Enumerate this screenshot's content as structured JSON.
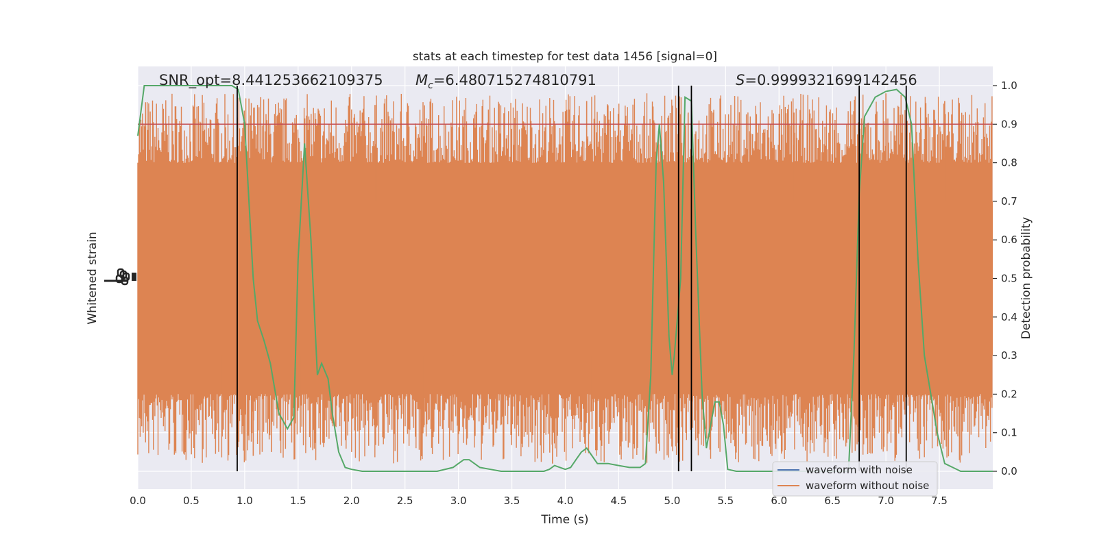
{
  "chart_data": {
    "type": "line",
    "title": "stats at each timestep for test data 1456 [signal=0]",
    "xlabel": "Time (s)",
    "ylabel_left": "Whitened strain",
    "ylabel_right": "Detection probability",
    "xlim": [
      0,
      8.0
    ],
    "ylim_right": [
      -0.05,
      1.05
    ],
    "x_ticks": [
      "0.0",
      "0.5",
      "1.0",
      "1.5",
      "2.0",
      "2.5",
      "3.0",
      "3.5",
      "4.0",
      "4.5",
      "5.0",
      "5.5",
      "6.0",
      "6.5",
      "7.0",
      "7.5"
    ],
    "x_tick_values": [
      0,
      0.5,
      1,
      1.5,
      2,
      2.5,
      3,
      3.5,
      4,
      4.5,
      5,
      5.5,
      6,
      6.5,
      7,
      7.5
    ],
    "y_right_ticks": [
      "0.0",
      "0.1",
      "0.2",
      "0.3",
      "0.4",
      "0.5",
      "0.6",
      "0.7",
      "0.8",
      "0.9",
      "1.0"
    ],
    "y_right_tick_values": [
      0,
      0.1,
      0.2,
      0.3,
      0.4,
      0.5,
      0.6,
      0.7,
      0.8,
      0.9,
      1.0
    ],
    "grid": true,
    "legend_position": "lower-right",
    "annotations": {
      "snr": "SNR_opt=8.441253662109375",
      "mc_prefix": "M",
      "mc_sub": "c",
      "mc_value": "=6.480715274810791",
      "s_prefix": "S",
      "s_value": "=0.9999321699142456"
    },
    "series": [
      {
        "name": "waveform with noise",
        "color": "#4c72b0"
      },
      {
        "name": "waveform without noise",
        "color": "#dd8452"
      }
    ],
    "strain_band": {
      "center": 0.5,
      "core_half_width": 0.2
    },
    "strain_spike_times": [
      0.61,
      0.79,
      1.08,
      1.15,
      1.25,
      1.52,
      1.6,
      2.1,
      2.23,
      2.68,
      2.95,
      3.35,
      3.88,
      4.2,
      4.25,
      5.15,
      5.22,
      6.14,
      6.73,
      7.0,
      7.38,
      7.55,
      7.62
    ],
    "strain_spike_values": [
      0.88,
      0.09,
      0.04,
      0.97,
      0.05,
      0.1,
      0.92,
      0.93,
      0.95,
      0.12,
      0.1,
      0.1,
      0.02,
      0.96,
      0.11,
      0.93,
      0.08,
      0.93,
      0.07,
      0.98,
      0.08,
      0.96,
      0.91
    ],
    "threshold": {
      "value": 0.9,
      "color": "#c44e52"
    },
    "probability": {
      "color": "#55a868",
      "x": [
        0.0,
        0.06,
        0.12,
        0.2,
        0.3,
        0.4,
        0.5,
        0.6,
        0.7,
        0.8,
        0.88,
        0.94,
        1.0,
        1.04,
        1.08,
        1.12,
        1.18,
        1.24,
        1.32,
        1.4,
        1.46,
        1.5,
        1.56,
        1.62,
        1.68,
        1.72,
        1.78,
        1.82,
        1.88,
        1.94,
        2.0,
        2.1,
        2.2,
        2.4,
        2.6,
        2.8,
        2.95,
        3.0,
        3.05,
        3.1,
        3.15,
        3.2,
        3.3,
        3.4,
        3.5,
        3.6,
        3.7,
        3.8,
        3.85,
        3.9,
        3.95,
        4.0,
        4.05,
        4.1,
        4.15,
        4.2,
        4.25,
        4.3,
        4.35,
        4.4,
        4.5,
        4.6,
        4.7,
        4.75,
        4.8,
        4.85,
        4.88,
        4.92,
        4.97,
        5.0,
        5.02,
        5.08,
        5.12,
        5.18,
        5.22,
        5.28,
        5.32,
        5.36,
        5.4,
        5.44,
        5.48,
        5.52,
        5.6,
        5.7,
        5.8,
        6.0,
        6.2,
        6.4,
        6.55,
        6.65,
        6.7,
        6.75,
        6.8,
        6.9,
        7.0,
        7.1,
        7.18,
        7.24,
        7.3,
        7.36,
        7.42,
        7.48,
        7.55,
        7.7,
        7.85,
        8.0
      ],
      "y": [
        0.87,
        1.0,
        1.0,
        1.0,
        1.0,
        1.0,
        1.0,
        1.0,
        1.0,
        1.0,
        1.0,
        0.99,
        0.9,
        0.7,
        0.5,
        0.39,
        0.34,
        0.28,
        0.15,
        0.11,
        0.14,
        0.55,
        0.85,
        0.6,
        0.25,
        0.28,
        0.24,
        0.15,
        0.05,
        0.01,
        0.005,
        0.0,
        0.0,
        0.0,
        0.0,
        0.0,
        0.01,
        0.02,
        0.03,
        0.03,
        0.02,
        0.01,
        0.005,
        0.0,
        0.0,
        0.0,
        0.0,
        0.0,
        0.005,
        0.015,
        0.01,
        0.005,
        0.01,
        0.03,
        0.05,
        0.06,
        0.04,
        0.02,
        0.02,
        0.02,
        0.015,
        0.01,
        0.01,
        0.02,
        0.25,
        0.8,
        0.9,
        0.75,
        0.35,
        0.25,
        0.3,
        0.5,
        0.97,
        0.96,
        0.62,
        0.2,
        0.06,
        0.12,
        0.18,
        0.18,
        0.12,
        0.005,
        0.0,
        0.0,
        0.0,
        0.0,
        0.0,
        0.0,
        0.0,
        0.0,
        0.3,
        0.72,
        0.92,
        0.97,
        0.985,
        0.99,
        0.97,
        0.9,
        0.55,
        0.3,
        0.2,
        0.1,
        0.02,
        0.0,
        0.0,
        0.0
      ]
    },
    "vertical_lines": [
      0.93,
      5.06,
      5.18,
      6.75,
      7.19
    ]
  }
}
